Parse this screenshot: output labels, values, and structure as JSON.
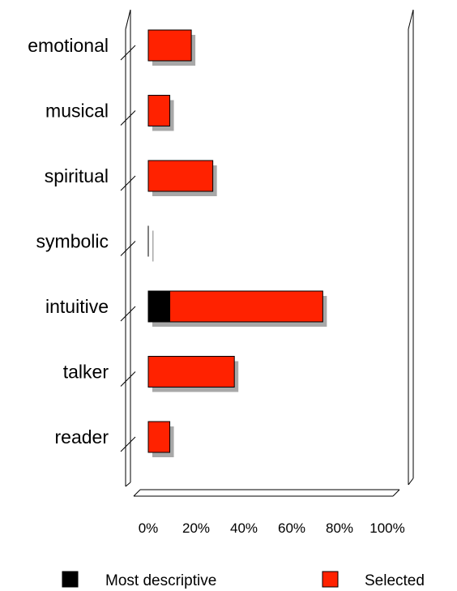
{
  "chart_data": {
    "type": "bar",
    "orientation": "horizontal",
    "stacked": true,
    "categories": [
      "emotional",
      "musical",
      "spiritual",
      "symbolic",
      "intuitive",
      "talker",
      "reader"
    ],
    "series": [
      {
        "name": "Most descriptive",
        "color": "#000000",
        "values": [
          0,
          0,
          0,
          0,
          9,
          0,
          0
        ]
      },
      {
        "name": "Selected",
        "color": "#ff2200",
        "values": [
          18,
          9,
          27,
          0,
          64,
          36,
          9
        ]
      }
    ],
    "xlim": [
      0,
      100
    ],
    "xticks": [
      0,
      20,
      40,
      60,
      80,
      100
    ],
    "xtick_labels": [
      "0%",
      "20%",
      "40%",
      "60%",
      "80%",
      "100%"
    ],
    "title": "",
    "xlabel": "",
    "ylabel": "",
    "grid": false,
    "legend_position": "bottom",
    "shadow_color": "#a8a8a8"
  }
}
